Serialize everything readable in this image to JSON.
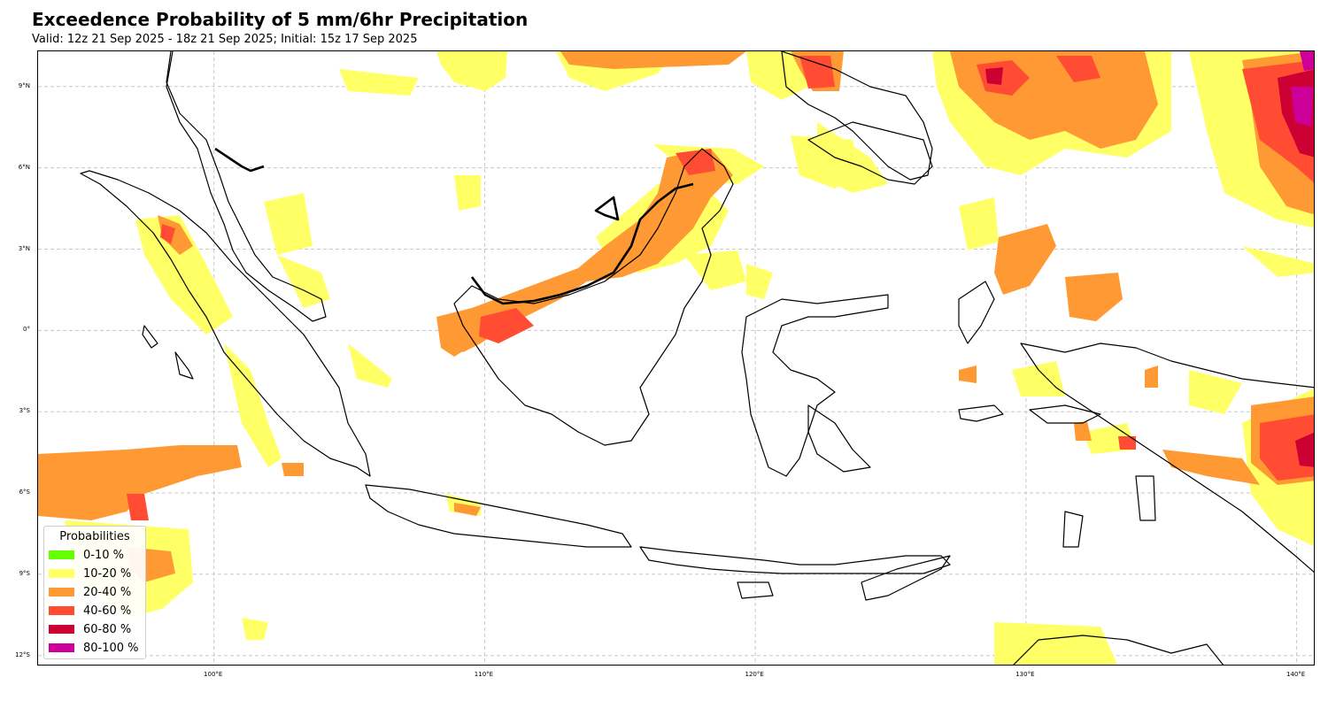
{
  "title": "Exceedence Probability of 5 mm/6hr Precipitation",
  "subtitle": "Valid: 12z 21 Sep 2025 - 18z 21 Sep 2025; Initial: 15z 17 Sep 2025",
  "axes": {
    "lon_range": [
      93.5,
      140.7
    ],
    "lat_range": [
      -12.4,
      10.3
    ],
    "lon_ticks": [
      {
        "value": 100,
        "label": "100°E"
      },
      {
        "value": 110,
        "label": "110°E"
      },
      {
        "value": 120,
        "label": "120°E"
      },
      {
        "value": 130,
        "label": "130°E"
      },
      {
        "value": 140,
        "label": "140°E"
      }
    ],
    "lat_ticks": [
      {
        "value": 9,
        "label": "9°N"
      },
      {
        "value": 6,
        "label": "6°N"
      },
      {
        "value": 3,
        "label": "3°N"
      },
      {
        "value": 0,
        "label": "0°"
      },
      {
        "value": -3,
        "label": "3°S"
      },
      {
        "value": -6,
        "label": "6°S"
      },
      {
        "value": -9,
        "label": "9°S"
      },
      {
        "value": -12,
        "label": "12°S"
      }
    ],
    "grid": true,
    "grid_style": "dashed"
  },
  "legend": {
    "title": "Probabilities",
    "position": "lower-left",
    "items": [
      {
        "label": "0-10 %",
        "color": "#66ff00"
      },
      {
        "label": "10-20 %",
        "color": "#ffff66"
      },
      {
        "label": "20-40 %",
        "color": "#ff9933"
      },
      {
        "label": "40-60 %",
        "color": "#ff4c33"
      },
      {
        "label": "60-80 %",
        "color": "#cc0033"
      },
      {
        "label": "80-100 %",
        "color": "#cc0099"
      }
    ]
  },
  "colors": {
    "coastline": "#000000",
    "gridline": "#c8c8c8"
  }
}
